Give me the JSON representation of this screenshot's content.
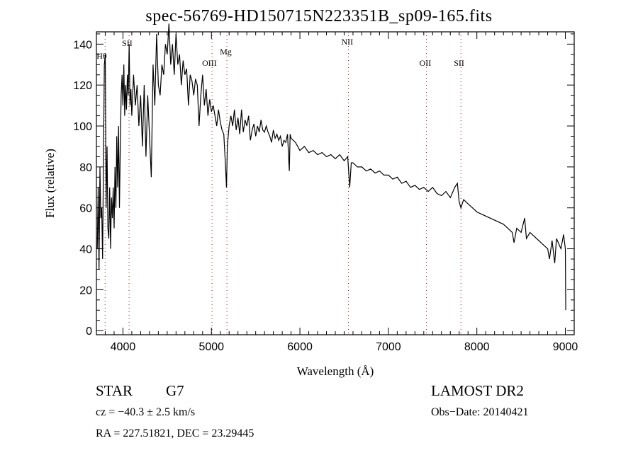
{
  "chart_data": {
    "type": "line",
    "title": "spec-56769-HD150715N223351B_sp09-165.fits",
    "xlabel": "Wavelength (Å)",
    "ylabel": "Flux (relative)",
    "xlim": [
      3700,
      9100
    ],
    "ylim": [
      -2,
      146
    ],
    "xticks": [
      4000,
      5000,
      6000,
      7000,
      8000,
      9000
    ],
    "yticks": [
      0,
      20,
      40,
      60,
      80,
      100,
      120,
      140
    ],
    "grid": false,
    "line_color": "#000000",
    "marker_color": "#8b1a1a",
    "line_markers": [
      {
        "label": "Hθ",
        "wavelength": 3798
      },
      {
        "label": "SII",
        "wavelength": 4069
      },
      {
        "label": "OIII",
        "wavelength": 5007
      },
      {
        "label": "Mg",
        "wavelength": 5175
      },
      {
        "label": "NII",
        "wavelength": 6548
      },
      {
        "label": "OII",
        "wavelength": 7430
      },
      {
        "label": "SII",
        "wavelength": 7820
      }
    ],
    "series": [
      {
        "name": "spectrum",
        "x": [
          3710,
          3720,
          3730,
          3740,
          3750,
          3760,
          3770,
          3780,
          3790,
          3800,
          3810,
          3820,
          3830,
          3840,
          3850,
          3860,
          3870,
          3880,
          3890,
          3900,
          3910,
          3920,
          3930,
          3940,
          3950,
          3960,
          3970,
          3980,
          3990,
          4000,
          4010,
          4020,
          4030,
          4040,
          4050,
          4060,
          4070,
          4080,
          4090,
          4100,
          4120,
          4140,
          4160,
          4180,
          4200,
          4220,
          4240,
          4260,
          4280,
          4300,
          4320,
          4340,
          4360,
          4380,
          4400,
          4420,
          4440,
          4460,
          4480,
          4500,
          4520,
          4540,
          4560,
          4580,
          4600,
          4620,
          4640,
          4660,
          4680,
          4700,
          4720,
          4740,
          4760,
          4780,
          4800,
          4820,
          4840,
          4860,
          4880,
          4900,
          4920,
          4940,
          4960,
          4980,
          5000,
          5020,
          5040,
          5060,
          5080,
          5100,
          5120,
          5140,
          5160,
          5170,
          5180,
          5200,
          5220,
          5240,
          5260,
          5280,
          5300,
          5320,
          5340,
          5360,
          5380,
          5400,
          5420,
          5440,
          5460,
          5480,
          5500,
          5520,
          5540,
          5560,
          5580,
          5600,
          5620,
          5640,
          5660,
          5680,
          5700,
          5720,
          5740,
          5760,
          5780,
          5800,
          5820,
          5840,
          5860,
          5880,
          5890,
          5900,
          5950,
          6000,
          6050,
          6100,
          6150,
          6200,
          6250,
          6300,
          6350,
          6400,
          6450,
          6500,
          6540,
          6563,
          6580,
          6600,
          6650,
          6700,
          6750,
          6800,
          6850,
          6900,
          6950,
          7000,
          7050,
          7100,
          7150,
          7200,
          7250,
          7300,
          7350,
          7400,
          7450,
          7500,
          7550,
          7600,
          7650,
          7700,
          7750,
          7780,
          7800,
          7820,
          7850,
          7900,
          7950,
          8000,
          8050,
          8100,
          8150,
          8200,
          8250,
          8300,
          8350,
          8400,
          8420,
          8450,
          8500,
          8540,
          8560,
          8600,
          8650,
          8700,
          8750,
          8800,
          8820,
          8850,
          8880,
          8900,
          8950,
          8980,
          9000,
          9005
        ],
        "y": [
          40,
          70,
          30,
          80,
          55,
          60,
          35,
          85,
          130,
          135,
          60,
          90,
          50,
          45,
          70,
          40,
          65,
          55,
          70,
          50,
          80,
          60,
          95,
          70,
          100,
          60,
          90,
          115,
          125,
          110,
          130,
          105,
          120,
          108,
          125,
          115,
          140,
          110,
          118,
          105,
          125,
          110,
          120,
          100,
          115,
          90,
          120,
          85,
          115,
          95,
          75,
          130,
          110,
          145,
          120,
          115,
          130,
          125,
          140,
          135,
          150,
          130,
          140,
          125,
          145,
          130,
          135,
          120,
          132,
          125,
          128,
          110,
          125,
          122,
          115,
          123,
          120,
          100,
          115,
          125,
          110,
          118,
          105,
          113,
          107,
          110,
          105,
          100,
          108,
          102,
          98,
          96,
          80,
          70,
          90,
          100,
          105,
          100,
          108,
          98,
          104,
          96,
          108,
          97,
          103,
          100,
          105,
          93,
          98,
          101,
          95,
          100,
          97,
          103,
          98,
          97,
          100,
          97,
          95,
          92,
          98,
          94,
          96,
          93,
          95,
          90,
          93,
          92,
          96,
          78,
          96,
          94,
          92,
          88,
          90,
          87,
          88,
          86,
          87,
          85,
          86,
          84,
          86,
          83,
          85,
          70,
          82,
          82,
          80,
          80,
          78,
          79,
          77,
          78,
          76,
          76,
          74,
          75,
          72,
          73,
          70,
          71,
          69,
          70,
          68,
          70,
          67,
          66,
          68,
          65,
          70,
          72,
          63,
          60,
          64,
          62,
          60,
          58,
          57,
          56,
          55,
          54,
          53,
          52,
          50,
          48,
          43,
          50,
          48,
          55,
          45,
          48,
          46,
          44,
          42,
          40,
          35,
          44,
          33,
          45,
          40,
          47,
          40,
          10
        ]
      }
    ]
  },
  "info": {
    "class": "STAR",
    "subclass": "G7",
    "survey": "LAMOST DR2",
    "cz": "cz = −40.3 ± 2.5 km/s",
    "obs_date": "Obs−Date: 20140421",
    "coords": "RA = 227.51821, DEC =  23.29445"
  }
}
